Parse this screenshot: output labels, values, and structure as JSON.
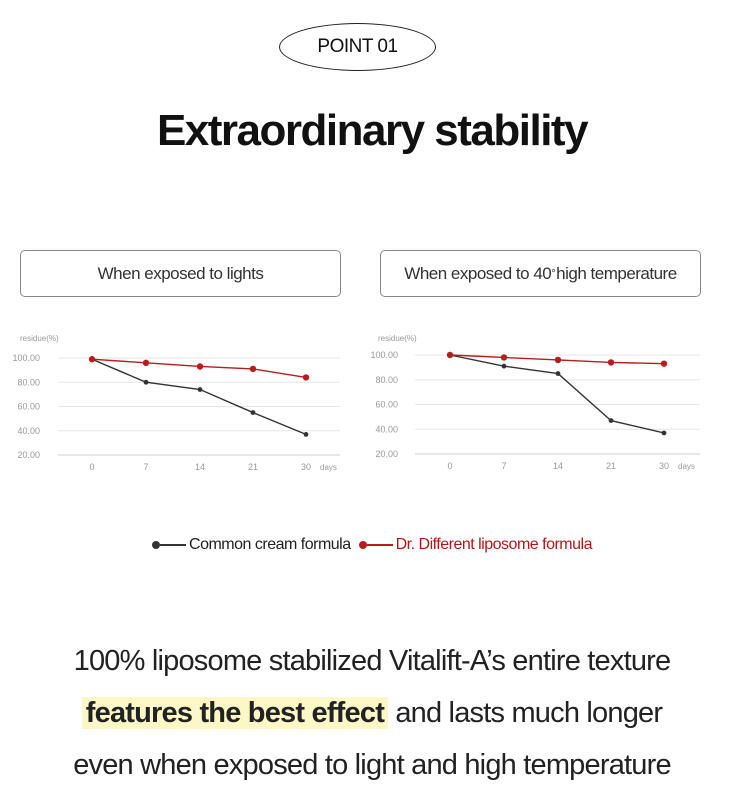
{
  "badge": "POINT 01",
  "title": "Extraordinary stability",
  "conditions": {
    "left": "When exposed to lights",
    "right_prefix": "When exposed to 40",
    "right_degree": "°",
    "right_suffix": " high temperature"
  },
  "legend": {
    "common": "Common cream formula",
    "dr": "Dr. Different liposome formula"
  },
  "colors": {
    "common": "#333333",
    "dr": "#b81c1c",
    "highlight": "#fbf7c6"
  },
  "description": {
    "line1": "100% liposome stabilized Vitalift-A’s entire texture",
    "line2_highlight": "features the best effect",
    "line2_rest": " and lasts much longer",
    "line3": "even when exposed to light and high temperature"
  },
  "chart_data": [
    {
      "type": "line",
      "title": "When exposed to lights",
      "ylabel": "residue(%)",
      "xlabel": "days",
      "categories": [
        "0",
        "7",
        "14",
        "21",
        "30"
      ],
      "yticks": [
        "100.00",
        "80.00",
        "60.00",
        "40.00",
        "20.00"
      ],
      "ylim": [
        20,
        100
      ],
      "series": [
        {
          "name": "Common cream formula",
          "values": [
            99,
            80,
            74,
            55,
            37
          ]
        },
        {
          "name": "Dr. Different liposome formula",
          "values": [
            99,
            96,
            93,
            91,
            84
          ]
        }
      ]
    },
    {
      "type": "line",
      "title": "When exposed to 40° high temperature",
      "ylabel": "residue(%)",
      "xlabel": "days",
      "categories": [
        "0",
        "7",
        "14",
        "21",
        "30"
      ],
      "yticks": [
        "100.00",
        "80.00",
        "60.00",
        "40.00",
        "20.00"
      ],
      "ylim": [
        20,
        100
      ],
      "series": [
        {
          "name": "Common cream formula",
          "values": [
            100,
            91,
            85,
            47,
            37
          ]
        },
        {
          "name": "Dr. Different liposome formula",
          "values": [
            100,
            98,
            96,
            94,
            93
          ]
        }
      ]
    }
  ]
}
